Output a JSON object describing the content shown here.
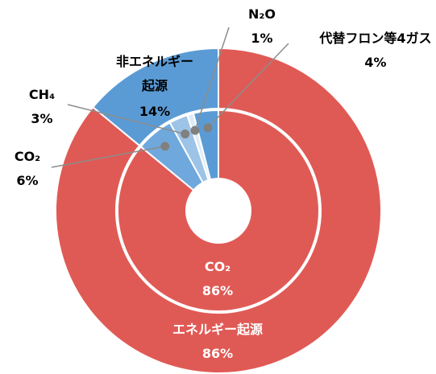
{
  "chart_data": {
    "type": "nested-donut",
    "rings": [
      {
        "categories": [
          "エネルギー起源",
          "非エネルギー起源"
        ],
        "values": [
          86,
          14
        ],
        "value_labels": [
          "86%",
          "14%"
        ],
        "colors": [
          "#e05a55",
          "#5b9bd5"
        ]
      },
      {
        "categories": [
          "CO₂",
          "CO₂",
          "CH₄",
          "N₂O",
          "代替フロン等4ガス"
        ],
        "values": [
          86,
          6,
          3,
          1,
          4
        ],
        "value_labels": [
          "86%",
          "6%",
          "3%",
          "1%",
          "4%"
        ],
        "colors": [
          "#e05a55",
          "#6fa8dc",
          "#9dc3e6",
          "#deebf7",
          "#5b9bd5"
        ]
      }
    ]
  }
}
